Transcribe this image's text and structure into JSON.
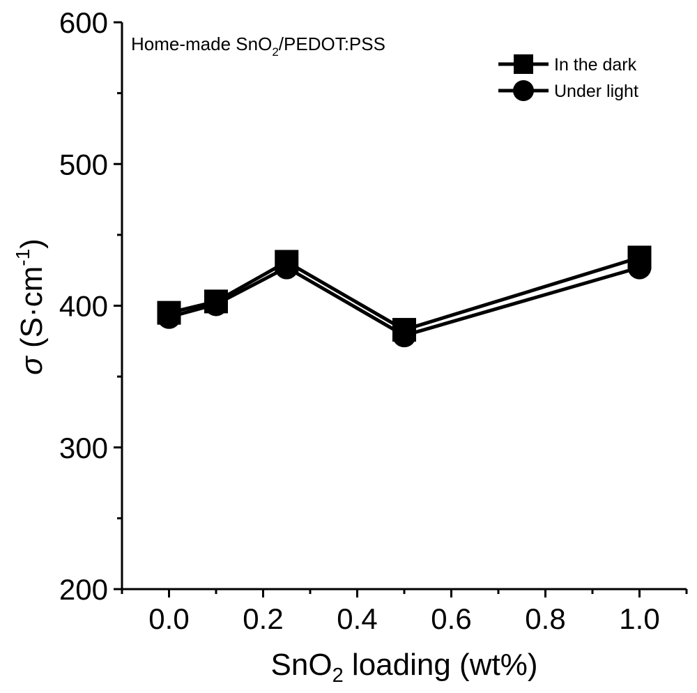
{
  "chart_data": {
    "type": "line",
    "annotation": {
      "prefix": "Home-made SnO",
      "sub": "2",
      "suffix": "/PEDOT:PSS"
    },
    "xlabel": {
      "prefix": "SnO",
      "sub": "2",
      "suffix": " loading (wt%)"
    },
    "ylabel": {
      "symbol": "σ",
      "unit": "(S·cm",
      "sup": "-1",
      "close": ")"
    },
    "xlim": [
      -0.1,
      1.1
    ],
    "ylim": [
      200,
      600
    ],
    "xticks": [
      0.0,
      0.2,
      0.4,
      0.6,
      0.8,
      1.0
    ],
    "xtick_labels": [
      "0.0",
      "0.2",
      "0.4",
      "0.6",
      "0.8",
      "1.0"
    ],
    "yticks": [
      200,
      300,
      400,
      500,
      600
    ],
    "ytick_labels": [
      "200",
      "300",
      "400",
      "500",
      "600"
    ],
    "x": [
      0.0,
      0.1,
      0.25,
      0.5,
      1.0
    ],
    "series": [
      {
        "name": "In the dark",
        "marker": "square",
        "values": [
          395,
          403,
          431,
          383,
          434
        ]
      },
      {
        "name": "Under light",
        "marker": "circle",
        "values": [
          392,
          401,
          427,
          379,
          427
        ]
      }
    ],
    "legend_position": "top-right",
    "grid": false,
    "colors": {
      "line": "#000000",
      "background": "#ffffff"
    }
  }
}
